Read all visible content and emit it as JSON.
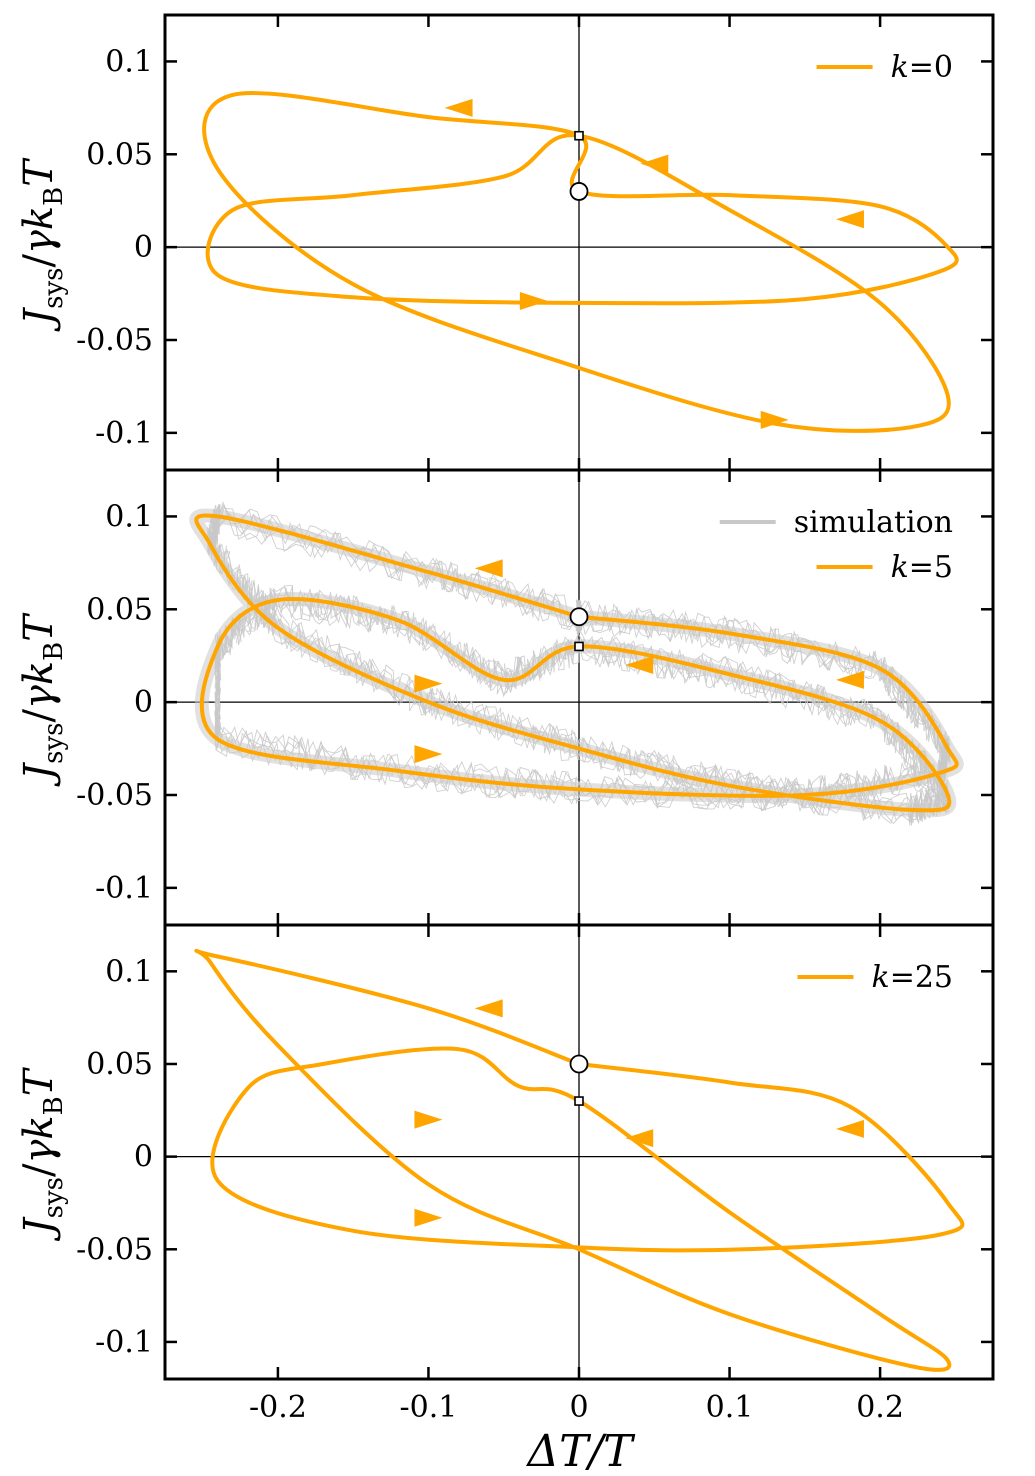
{
  "figure": {
    "xlabel": "ΔT/T",
    "ylabel": "J_sys/γk_B T"
  },
  "colors": {
    "model": "#FFA500",
    "simulation": "#c8c8c8",
    "axes": "#000000"
  },
  "chart_data": [
    {
      "type": "line",
      "xlim": [
        -0.275,
        0.275
      ],
      "ylim": [
        -0.12,
        0.125
      ],
      "xticks": [
        -0.2,
        -0.1,
        0,
        0.1,
        0.2
      ],
      "xtick_labels": [],
      "yticks": [
        -0.1,
        -0.05,
        0,
        0.05,
        0.1
      ],
      "ytick_labels": [
        "-0.1",
        "-0.05",
        "0",
        "0.05",
        "0.1"
      ],
      "ylabel": "J_sys/γk_B T",
      "legend": {
        "placement": "top-right",
        "entries": [
          {
            "label_prefix": "k",
            "label_suffix": "=0"
          }
        ]
      },
      "start_marker": {
        "x": 0,
        "y": 0.03
      },
      "end_marker": {
        "x": 0,
        "y": 0.06
      },
      "series": [
        {
          "name": "k=0",
          "closed": true,
          "x": [
            0,
            0.1,
            0.2,
            0.245,
            0.24,
            0.15,
            0.0,
            -0.15,
            -0.24,
            -0.23,
            -0.15,
            -0.05,
            0,
            0.1,
            0.2,
            0.245,
            0.22,
            0.13,
            0.0,
            -0.15,
            -0.24,
            -0.23,
            -0.1,
            0
          ],
          "y": [
            0.03,
            0.028,
            0.022,
            0.0,
            -0.013,
            -0.028,
            -0.03,
            -0.027,
            -0.015,
            0.02,
            0.028,
            0.038,
            0.06,
            0.02,
            -0.03,
            -0.08,
            -0.097,
            -0.095,
            -0.065,
            -0.02,
            0.042,
            0.082,
            0.07,
            0.06
          ]
        }
      ],
      "arrows": [
        {
          "x": -0.08,
          "y": 0.075,
          "dir": "left"
        },
        {
          "x": 0.05,
          "y": 0.045,
          "dir": "left"
        },
        {
          "x": 0.18,
          "y": 0.015,
          "dir": "left"
        },
        {
          "x": -0.03,
          "y": -0.029,
          "dir": "right"
        },
        {
          "x": 0.13,
          "y": -0.093,
          "dir": "right"
        }
      ]
    },
    {
      "type": "line",
      "xlim": [
        -0.275,
        0.275
      ],
      "ylim": [
        -0.12,
        0.125
      ],
      "xticks": [
        -0.2,
        -0.1,
        0,
        0.1,
        0.2
      ],
      "xtick_labels": [],
      "yticks": [
        -0.1,
        -0.05,
        0,
        0.05,
        0.1
      ],
      "ytick_labels": [
        "-0.1",
        "-0.05",
        "0",
        "0.05",
        "0.1"
      ],
      "ylabel": "J_sys/γk_B T",
      "legend": {
        "placement": "top-right",
        "entries": [
          {
            "label": "simulation",
            "color_key": "simulation"
          },
          {
            "label_prefix": "k",
            "label_suffix": "=5"
          }
        ]
      },
      "start_marker": {
        "x": 0,
        "y": 0.046
      },
      "end_marker": {
        "x": 0,
        "y": 0.03
      },
      "series": [
        {
          "name": "k=5",
          "closed": true,
          "x": [
            0,
            0.1,
            0.2,
            0.245,
            0.24,
            0.15,
            0.0,
            -0.12,
            -0.24,
            -0.24,
            -0.2,
            -0.12,
            -0.05,
            0,
            0.1,
            0.2,
            0.245,
            0.22,
            0.1,
            0.0,
            -0.1,
            -0.2,
            -0.245,
            -0.24,
            -0.1,
            0
          ],
          "y": [
            0.046,
            0.037,
            0.018,
            -0.025,
            -0.038,
            -0.05,
            -0.047,
            -0.037,
            -0.02,
            0.03,
            0.055,
            0.044,
            0.012,
            0.03,
            0.015,
            -0.01,
            -0.05,
            -0.058,
            -0.045,
            -0.025,
            0.0,
            0.04,
            0.085,
            0.1,
            0.07,
            0.046
          ]
        }
      ],
      "arrows": [
        {
          "x": -0.06,
          "y": 0.072,
          "dir": "left"
        },
        {
          "x": 0.04,
          "y": 0.02,
          "dir": "left"
        },
        {
          "x": 0.18,
          "y": 0.012,
          "dir": "left"
        },
        {
          "x": -0.1,
          "y": 0.01,
          "dir": "right"
        },
        {
          "x": -0.1,
          "y": -0.028,
          "dir": "right"
        }
      ]
    },
    {
      "type": "line",
      "xlim": [
        -0.275,
        0.275
      ],
      "ylim": [
        -0.12,
        0.125
      ],
      "xticks": [
        -0.2,
        -0.1,
        0,
        0.1,
        0.2
      ],
      "xtick_labels": [
        "-0.2",
        "-0.1",
        "0",
        "0.1",
        "0.2"
      ],
      "yticks": [
        -0.1,
        -0.05,
        0,
        0.05,
        0.1
      ],
      "ytick_labels": [
        "-0.1",
        "-0.05",
        "0",
        "0.05",
        "0.1"
      ],
      "xlabel": "ΔT/T",
      "ylabel": "J_sys/γk_B T",
      "legend": {
        "placement": "top-right",
        "entries": [
          {
            "label_prefix": "k",
            "label_suffix": "=25"
          }
        ]
      },
      "start_marker": {
        "x": 0,
        "y": 0.05
      },
      "end_marker": {
        "x": 0,
        "y": 0.03
      },
      "series": [
        {
          "name": "k=25",
          "closed": true,
          "x": [
            0,
            0.1,
            0.18,
            0.245,
            0.24,
            0.11,
            0.0,
            -0.15,
            -0.24,
            -0.22,
            -0.17,
            -0.08,
            -0.04,
            0,
            0.1,
            0.2,
            0.245,
            0.22,
            0.1,
            0.0,
            -0.1,
            -0.2,
            -0.245,
            -0.24,
            -0.1,
            0
          ],
          "y": [
            0.05,
            0.04,
            0.027,
            -0.025,
            -0.042,
            -0.05,
            -0.049,
            -0.04,
            -0.013,
            0.037,
            0.05,
            0.058,
            0.038,
            0.03,
            -0.03,
            -0.085,
            -0.11,
            -0.113,
            -0.085,
            -0.05,
            -0.015,
            0.06,
            0.105,
            0.108,
            0.08,
            0.05
          ]
        }
      ],
      "arrows": [
        {
          "x": -0.06,
          "y": 0.08,
          "dir": "left"
        },
        {
          "x": 0.04,
          "y": 0.01,
          "dir": "left"
        },
        {
          "x": 0.18,
          "y": 0.015,
          "dir": "left"
        },
        {
          "x": -0.1,
          "y": 0.02,
          "dir": "right"
        },
        {
          "x": -0.1,
          "y": -0.033,
          "dir": "right"
        }
      ]
    }
  ]
}
